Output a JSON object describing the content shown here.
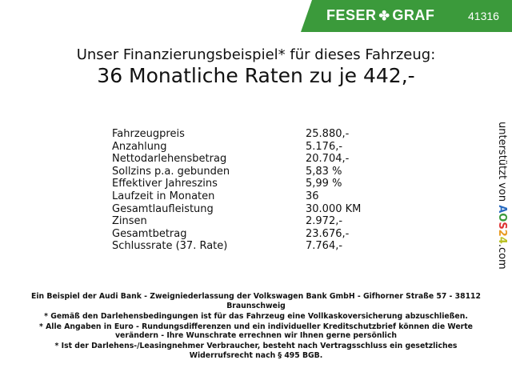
{
  "header": {
    "brand_left": "FESER",
    "brand_right": "GRAF",
    "brand_icon": "clover-icon",
    "number": "41316",
    "band_color": "#3b9a3b"
  },
  "title": {
    "line1": "Unser Finanzierungsbeispiel* für dieses Fahrzeug:",
    "line2": "36 Monatliche Raten zu je 442,-"
  },
  "rows": [
    {
      "label": "Fahrzeugpreis",
      "value": "25.880,-"
    },
    {
      "label": "Anzahlung",
      "value": "5.176,-"
    },
    {
      "label": "Nettodarlehensbetrag",
      "value": "20.704,-"
    },
    {
      "label": "Sollzins p.a. gebunden",
      "value": "5,83 %"
    },
    {
      "label": "Effektiver Jahreszins",
      "value": "5,99 %"
    },
    {
      "label": "Laufzeit in Monaten",
      "value": "36"
    },
    {
      "label": "Gesamtlaufleistung",
      "value": "30.000 KM"
    },
    {
      "label": "Zinsen",
      "value": "2.972,-"
    },
    {
      "label": "Gesamtbetrag",
      "value": "23.676,-"
    },
    {
      "label": "Schlussrate (37. Rate)",
      "value": "7.764,-"
    }
  ],
  "side": {
    "text": "unterstützt von",
    "logo": "AOS24",
    "suffix": ".com"
  },
  "footer": [
    "Ein Beispiel der Audi Bank - Zweigniederlassung der Volkswagen Bank GmbH - Gifhorner Straße 57 - 38112 Braunschweig",
    "* Gemäß den Darlehensbedingungen ist für das Fahrzeug eine Vollkaskoversicherung abzuschließen.",
    "* Alle Angaben in Euro - Rundungsdifferenzen und ein individueller Kreditschutzbrief können die Werte verändern - Ihre Wunschrate errechnen wir Ihnen gerne persönlich",
    "* Ist der Darlehens-/Leasingnehmer Verbraucher, besteht nach Vertragsschluss ein gesetzliches Widerrufsrecht nach § 495 BGB."
  ]
}
